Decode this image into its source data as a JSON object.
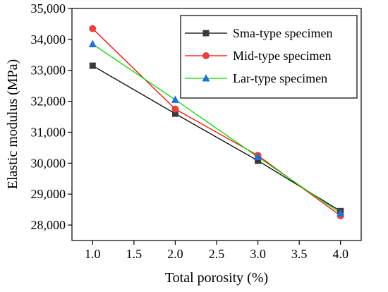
{
  "chart_data": {
    "type": "line",
    "xlabel": "Total porosity (%)",
    "ylabel": "Elastic modulus (MPa)",
    "xlim": [
      0.75,
      4.25
    ],
    "ylim": [
      27500,
      35000
    ],
    "x_ticks": [
      "1.0",
      "1.5",
      "2.0",
      "2.5",
      "3.0",
      "3.5",
      "4.0"
    ],
    "y_ticks": [
      "28,000",
      "29,000",
      "30,000",
      "31,000",
      "32,000",
      "33,000",
      "34,000",
      "35,000"
    ],
    "x": [
      1.0,
      2.0,
      3.0,
      4.0
    ],
    "grid": false,
    "legend_position": "top-right",
    "series": [
      {
        "name": "Sma-type specimen",
        "color": "#000000",
        "marker_color": "#3a3a3a",
        "marker": "square",
        "values": [
          33150,
          31600,
          30080,
          28450
        ]
      },
      {
        "name": "Mid-type specimen",
        "color": "#ff0000",
        "marker_color": "#e8413c",
        "marker": "circle",
        "values": [
          34350,
          31750,
          30250,
          28300
        ]
      },
      {
        "name": "Lar-type specimen",
        "color": "#00dd00",
        "marker_color": "#1f6fe0",
        "marker": "triangle",
        "values": [
          33850,
          32050,
          30200,
          28380
        ]
      }
    ]
  }
}
